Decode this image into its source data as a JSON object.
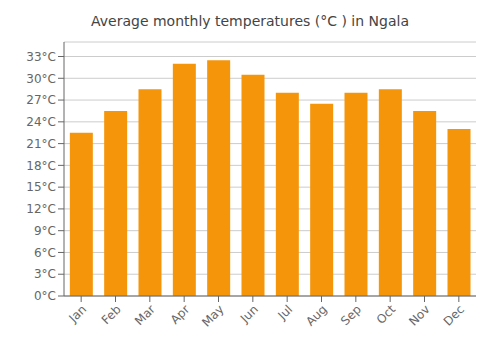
{
  "chart_data": {
    "type": "bar",
    "title": "Average monthly temperatures (°C ) in Ngala",
    "categories": [
      "Jan",
      "Feb",
      "Mar",
      "Apr",
      "May",
      "Jun",
      "Jul",
      "Aug",
      "Sep",
      "Oct",
      "Nov",
      "Dec"
    ],
    "values": [
      22.5,
      25.5,
      28.5,
      32.0,
      32.5,
      30.5,
      28.0,
      26.5,
      28.0,
      28.5,
      25.5,
      23.0
    ],
    "color": "#F5960A",
    "ylim": [
      0,
      35
    ],
    "yticks": [
      {
        "value": 0,
        "label": "0°C"
      },
      {
        "value": 3,
        "label": "3°C"
      },
      {
        "value": 6,
        "label": "6°C"
      },
      {
        "value": 9,
        "label": "9°C"
      },
      {
        "value": 12,
        "label": "12°C"
      },
      {
        "value": 15,
        "label": "15°C"
      },
      {
        "value": 18,
        "label": "18°C"
      },
      {
        "value": 21,
        "label": "21°C"
      },
      {
        "value": 24,
        "label": "24°C"
      },
      {
        "value": 27,
        "label": "27°C"
      },
      {
        "value": 30,
        "label": "30°C"
      },
      {
        "value": 33,
        "label": "33°C"
      }
    ],
    "grid": true
  }
}
